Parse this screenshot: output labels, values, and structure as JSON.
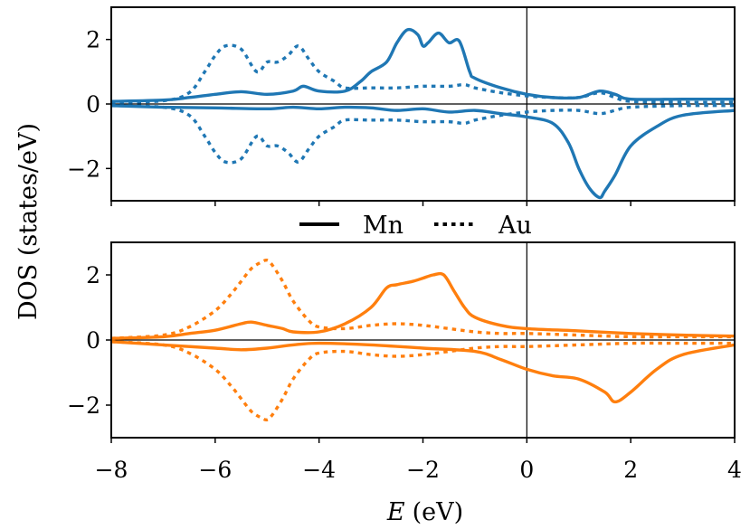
{
  "chart_data": {
    "type": "line",
    "title": "",
    "ylabel": "DOS (states/eV)",
    "xlabel": "E (eV)",
    "xlabel_italic": "E",
    "xlabel_unit": "(eV)",
    "xlim": [
      -8,
      4
    ],
    "xticks": [
      -8,
      -6,
      -4,
      -2,
      0,
      2,
      4
    ],
    "xtick_labels": [
      "−8",
      "−6",
      "−4",
      "−2",
      "0",
      "2",
      "4"
    ],
    "fermi_level": 0,
    "legend": {
      "placement": "center-between-panels",
      "entries": [
        {
          "label": "Mn",
          "style": "solid"
        },
        {
          "label": "Au",
          "style": "dotted"
        }
      ]
    },
    "panels": [
      {
        "name": "top",
        "color": "#1f77b4",
        "ylim": [
          -3,
          3
        ],
        "yticks": [
          -2,
          0,
          2
        ],
        "ytick_labels": [
          "−2",
          "0",
          "2"
        ],
        "series": [
          {
            "name": "Mn up",
            "element": "Mn",
            "style": "solid",
            "x": [
              -8,
              -7,
              -6.5,
              -6,
              -5.5,
              -5,
              -4.5,
              -4.3,
              -4,
              -3.5,
              -3.2,
              -3,
              -2.7,
              -2.5,
              -2.3,
              -2.1,
              -2,
              -1.9,
              -1.7,
              -1.5,
              -1.3,
              -1.1,
              -1,
              -0.5,
              0,
              0.5,
              1,
              1.4,
              1.7,
              2,
              3,
              4
            ],
            "y": [
              0.08,
              0.12,
              0.2,
              0.3,
              0.38,
              0.3,
              0.4,
              0.55,
              0.4,
              0.4,
              0.7,
              1.0,
              1.3,
              1.9,
              2.3,
              2.15,
              1.8,
              1.9,
              2.2,
              1.9,
              1.95,
              1.0,
              0.8,
              0.5,
              0.3,
              0.2,
              0.2,
              0.4,
              0.3,
              0.15,
              0.15,
              0.15
            ]
          },
          {
            "name": "Au up",
            "element": "Au",
            "style": "dotted",
            "x": [
              -8,
              -7,
              -6.5,
              -6.2,
              -6,
              -5.8,
              -5.5,
              -5.2,
              -5,
              -4.8,
              -4.6,
              -4.4,
              -4.2,
              -4,
              -3.7,
              -3.5,
              -3,
              -2.5,
              -2,
              -1.5,
              -1.2,
              -1,
              -0.5,
              0,
              0.5,
              1,
              1.4,
              1.7,
              2,
              3,
              4
            ],
            "y": [
              0.05,
              0.1,
              0.35,
              1.0,
              1.5,
              1.8,
              1.7,
              1.0,
              1.3,
              1.3,
              1.5,
              1.8,
              1.4,
              1.0,
              0.7,
              0.5,
              0.5,
              0.5,
              0.55,
              0.55,
              0.6,
              0.5,
              0.35,
              0.25,
              0.2,
              0.2,
              0.35,
              0.2,
              0.08,
              0.05,
              0.05
            ]
          },
          {
            "name": "Mn down",
            "element": "Mn",
            "style": "solid",
            "x": [
              -8,
              -7,
              -6,
              -5,
              -4.5,
              -4,
              -3.5,
              -3,
              -2.5,
              -2,
              -1.5,
              -1,
              -0.5,
              0,
              0.5,
              0.8,
              1,
              1.2,
              1.4,
              1.5,
              1.7,
              2,
              2.5,
              3,
              4
            ],
            "y": [
              -0.05,
              -0.1,
              -0.12,
              -0.15,
              -0.1,
              -0.15,
              -0.1,
              -0.12,
              -0.2,
              -0.15,
              -0.25,
              -0.2,
              -0.3,
              -0.4,
              -0.6,
              -1.2,
              -2.0,
              -2.6,
              -2.9,
              -2.7,
              -2.2,
              -1.3,
              -0.7,
              -0.35,
              -0.2
            ]
          },
          {
            "name": "Au down",
            "element": "Au",
            "style": "dotted",
            "x": [
              -8,
              -7,
              -6.5,
              -6.2,
              -6,
              -5.8,
              -5.5,
              -5.2,
              -5,
              -4.8,
              -4.6,
              -4.4,
              -4.2,
              -4,
              -3.7,
              -3.5,
              -3,
              -2.5,
              -2,
              -1.5,
              -1.2,
              -1,
              -0.5,
              0,
              0.5,
              1,
              1.4,
              1.7,
              2,
              3,
              4
            ],
            "y": [
              -0.05,
              -0.1,
              -0.35,
              -1.0,
              -1.5,
              -1.8,
              -1.7,
              -1.0,
              -1.3,
              -1.3,
              -1.5,
              -1.8,
              -1.4,
              -1.0,
              -0.7,
              -0.5,
              -0.5,
              -0.5,
              -0.55,
              -0.55,
              -0.6,
              -0.5,
              -0.35,
              -0.25,
              -0.2,
              -0.2,
              -0.3,
              -0.2,
              -0.1,
              -0.05,
              -0.05
            ]
          }
        ]
      },
      {
        "name": "bottom",
        "color": "#ff7f0e",
        "ylim": [
          -3,
          3
        ],
        "yticks": [
          -2,
          0,
          2
        ],
        "ytick_labels": [
          "−2",
          "0",
          "2"
        ],
        "series": [
          {
            "name": "Mn up",
            "element": "Mn",
            "style": "solid",
            "x": [
              -8,
              -7,
              -6.5,
              -6,
              -5.5,
              -5.3,
              -5,
              -4.7,
              -4.5,
              -4,
              -3.5,
              -3,
              -2.7,
              -2.5,
              -2.2,
              -2,
              -1.8,
              -1.6,
              -1.4,
              -1.2,
              -1,
              -0.5,
              0,
              1,
              2,
              3,
              4
            ],
            "y": [
              0.05,
              0.1,
              0.2,
              0.3,
              0.5,
              0.55,
              0.45,
              0.35,
              0.25,
              0.25,
              0.5,
              1.0,
              1.6,
              1.7,
              1.8,
              1.9,
              2.0,
              2.0,
              1.5,
              1.0,
              0.7,
              0.45,
              0.35,
              0.28,
              0.2,
              0.15,
              0.12
            ]
          },
          {
            "name": "Au up",
            "element": "Au",
            "style": "dotted",
            "x": [
              -8,
              -7,
              -6.5,
              -6,
              -5.7,
              -5.5,
              -5.3,
              -5.1,
              -5,
              -4.9,
              -4.7,
              -4.5,
              -4.2,
              -4,
              -3.5,
              -3,
              -2.5,
              -2,
              -1.5,
              -1,
              -0.5,
              0,
              1,
              2,
              3,
              4
            ],
            "y": [
              0.05,
              0.15,
              0.4,
              0.9,
              1.4,
              1.8,
              2.2,
              2.4,
              2.45,
              2.3,
              1.8,
              1.2,
              0.6,
              0.4,
              0.35,
              0.45,
              0.5,
              0.45,
              0.35,
              0.25,
              0.2,
              0.2,
              0.15,
              0.1,
              0.1,
              0.1
            ]
          },
          {
            "name": "Mn down",
            "element": "Mn",
            "style": "solid",
            "x": [
              -8,
              -7,
              -6,
              -5.5,
              -5,
              -4.5,
              -4,
              -3,
              -2,
              -1,
              -0.5,
              0,
              0.5,
              1,
              1.5,
              1.7,
              2,
              2.5,
              3,
              4
            ],
            "y": [
              -0.05,
              -0.15,
              -0.25,
              -0.3,
              -0.25,
              -0.15,
              -0.1,
              -0.15,
              -0.25,
              -0.35,
              -0.6,
              -0.9,
              -1.1,
              -1.2,
              -1.6,
              -1.9,
              -1.6,
              -0.9,
              -0.45,
              -0.15
            ]
          },
          {
            "name": "Au down",
            "element": "Au",
            "style": "dotted",
            "x": [
              -8,
              -7,
              -6.5,
              -6,
              -5.7,
              -5.5,
              -5.3,
              -5.1,
              -5,
              -4.9,
              -4.7,
              -4.5,
              -4.2,
              -4,
              -3.5,
              -3,
              -2.5,
              -2,
              -1.5,
              -1,
              -0.5,
              0,
              1,
              2,
              3,
              4
            ],
            "y": [
              -0.05,
              -0.15,
              -0.4,
              -0.9,
              -1.4,
              -1.8,
              -2.2,
              -2.4,
              -2.45,
              -2.3,
              -1.8,
              -1.2,
              -0.6,
              -0.4,
              -0.35,
              -0.45,
              -0.5,
              -0.45,
              -0.35,
              -0.25,
              -0.2,
              -0.2,
              -0.15,
              -0.1,
              -0.1,
              -0.1
            ]
          }
        ]
      }
    ]
  }
}
